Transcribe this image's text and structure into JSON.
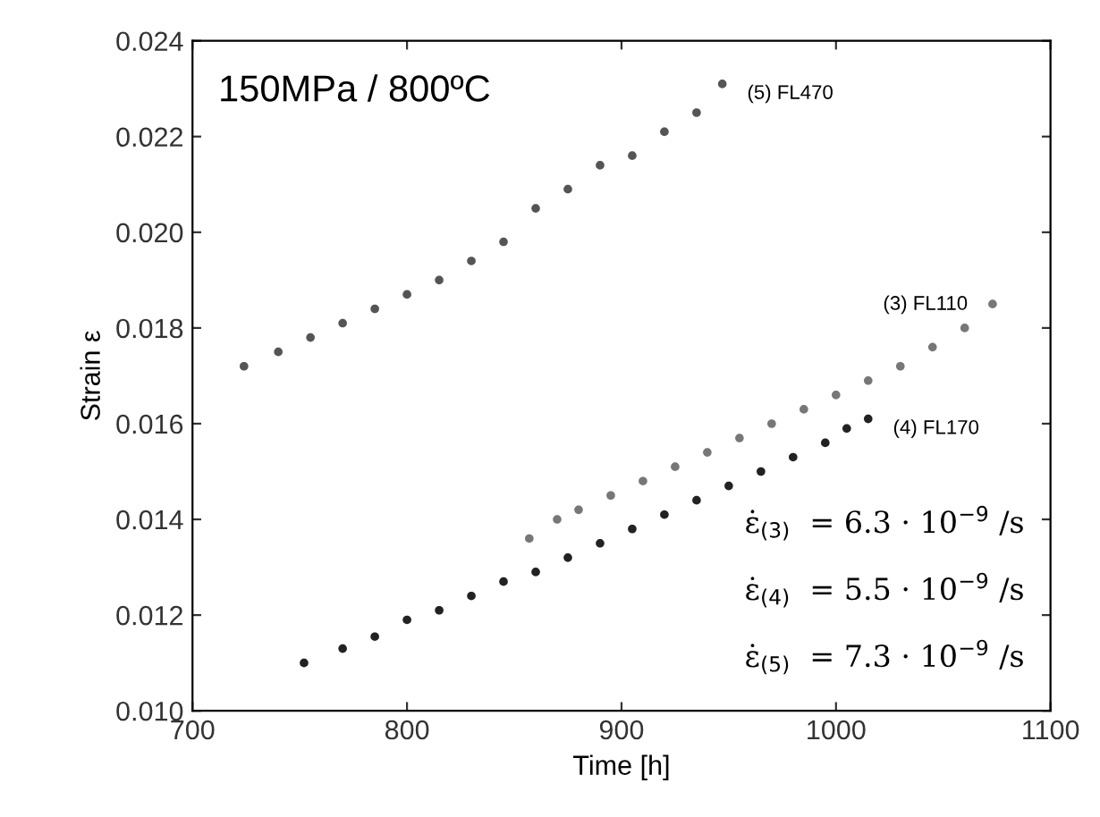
{
  "chart_data": {
    "type": "scatter",
    "title": "150MPa / 800ºC",
    "xlabel": "Time [h]",
    "ylabel": "Strain ε",
    "xlim": [
      700,
      1100
    ],
    "ylim": [
      0.01,
      0.024
    ],
    "xticks": [
      700,
      800,
      900,
      1000,
      1100
    ],
    "yticks": [
      {
        "value": 0.01,
        "label": "0.010"
      },
      {
        "value": 0.012,
        "label": "0.012"
      },
      {
        "value": 0.014,
        "label": "0.014"
      },
      {
        "value": 0.016,
        "label": "0.016"
      },
      {
        "value": 0.018,
        "label": "0.018"
      },
      {
        "value": 0.02,
        "label": "0.020"
      },
      {
        "value": 0.022,
        "label": "0.022"
      },
      {
        "value": 0.024,
        "label": "0.024"
      }
    ],
    "grid": false,
    "legend": false,
    "marker": "circle",
    "series": [
      {
        "name": "(5) FL470",
        "color": "#555555",
        "x": [
          724,
          740,
          755,
          770,
          785,
          800,
          815,
          830,
          845,
          860,
          875,
          890,
          905,
          920,
          935,
          947
        ],
        "values": [
          0.0172,
          0.0175,
          0.0178,
          0.0181,
          0.0184,
          0.0187,
          0.019,
          0.0194,
          0.0198,
          0.0205,
          0.0209,
          0.0214,
          0.0216,
          0.0221,
          0.0225,
          0.0231
        ]
      },
      {
        "name": "(3) FL110",
        "color": "#777777",
        "x": [
          857,
          870,
          880,
          895,
          910,
          925,
          940,
          955,
          970,
          985,
          1000,
          1015,
          1030,
          1045,
          1060,
          1073
        ],
        "values": [
          0.0136,
          0.014,
          0.0142,
          0.0145,
          0.0148,
          0.0151,
          0.0154,
          0.0157,
          0.016,
          0.0163,
          0.0166,
          0.0169,
          0.0172,
          0.0176,
          0.018,
          0.0185
        ]
      },
      {
        "name": "(4) FL170",
        "color": "#222222",
        "x": [
          752,
          770,
          785,
          800,
          815,
          830,
          845,
          860,
          875,
          890,
          905,
          920,
          935,
          950,
          965,
          980,
          995,
          1005,
          1015
        ],
        "values": [
          0.011,
          0.0113,
          0.01155,
          0.0119,
          0.0121,
          0.0124,
          0.0127,
          0.0129,
          0.0132,
          0.0135,
          0.0138,
          0.0141,
          0.0144,
          0.0147,
          0.015,
          0.0153,
          0.0156,
          0.0159,
          0.0161
        ]
      }
    ],
    "annotations": [
      "ε̇$_{(3)}$  = 6.3 · 10$^{−9}$ /s",
      "ε̇$_{(4)}$  = 5.5 · 10$^{−9}$ /s",
      "ε̇$_{(5)}$  = 7.3 · 10$^{−9}$ /s"
    ]
  }
}
